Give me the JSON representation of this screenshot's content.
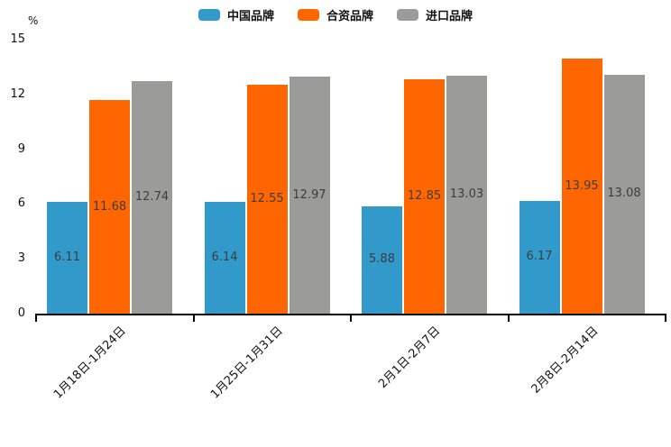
{
  "chart_data": {
    "type": "bar",
    "title": "",
    "ylabel": "%",
    "categories": [
      "1月18日-1月24日",
      "1月25日-1月31日",
      "2月1日-2月7日",
      "2月8日-2月14日"
    ],
    "series": [
      {
        "name": "中国品牌",
        "color": "#3299CB",
        "values": [
          6.11,
          6.14,
          5.88,
          6.17
        ]
      },
      {
        "name": "合资品牌",
        "color": "#FF6600",
        "values": [
          11.68,
          12.55,
          12.85,
          13.95
        ]
      },
      {
        "name": "进口品牌",
        "color": "#9B9B99",
        "values": [
          12.74,
          12.97,
          13.03,
          13.08
        ]
      }
    ],
    "y_ticks": [
      0,
      3,
      6,
      9,
      12,
      15
    ],
    "ylim": [
      0,
      15
    ],
    "grid": false,
    "legend_position": "top-center",
    "value_labels": "inside-center",
    "axis_color": "#000000",
    "label_color": "#3d3d3d"
  }
}
